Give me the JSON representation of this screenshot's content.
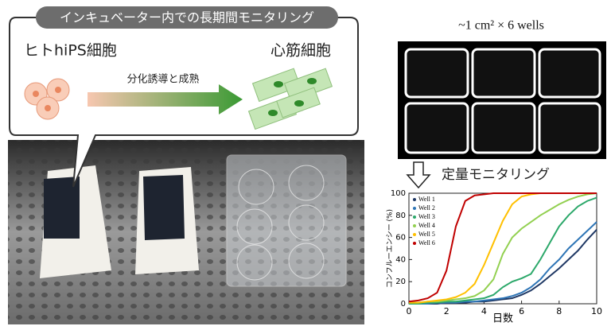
{
  "banner": "インキュベーター内での長期間モニタリング",
  "diagram": {
    "source_label": "ヒトhiPS細胞",
    "target_label": "心筋細胞",
    "arrow_label": "分化誘導と成熟"
  },
  "wells_image": {
    "caption": "~1 cm² × 6 wells"
  },
  "chart_heading": "定量モニタリング",
  "chart_data": {
    "type": "line",
    "xlabel": "日数",
    "ylabel": "コンフルーエンシー (%)",
    "x": [
      0,
      0.5,
      1,
      1.5,
      2,
      2.5,
      3,
      3.5,
      4,
      4.5,
      5,
      5.5,
      6,
      6.5,
      7,
      7.5,
      8,
      8.5,
      9,
      9.5,
      10
    ],
    "xlim": [
      0,
      10
    ],
    "xticks": [
      0,
      2,
      4,
      6,
      8,
      10
    ],
    "ylim": [
      0,
      100
    ],
    "yticks": [
      0,
      20,
      40,
      60,
      80,
      100
    ],
    "legend": "upper left",
    "series": [
      {
        "name": "Well 1",
        "color": "#1f3864",
        "values": [
          0,
          0,
          0,
          0,
          1,
          1,
          1,
          2,
          2,
          3,
          4,
          5,
          8,
          12,
          18,
          25,
          32,
          40,
          48,
          58,
          67
        ]
      },
      {
        "name": "Well 2",
        "color": "#2e75b6",
        "values": [
          0,
          0,
          0,
          1,
          1,
          1,
          2,
          2,
          3,
          4,
          5,
          7,
          10,
          15,
          22,
          32,
          40,
          50,
          58,
          66,
          74
        ]
      },
      {
        "name": "Well 3",
        "color": "#2ca86a",
        "values": [
          0,
          0,
          1,
          1,
          2,
          2,
          3,
          4,
          5,
          8,
          15,
          20,
          23,
          27,
          40,
          55,
          70,
          80,
          88,
          93,
          96
        ]
      },
      {
        "name": "Well 4",
        "color": "#92d050",
        "values": [
          1,
          1,
          2,
          2,
          3,
          4,
          5,
          7,
          12,
          22,
          45,
          60,
          68,
          74,
          80,
          85,
          90,
          94,
          97,
          99,
          100
        ]
      },
      {
        "name": "Well 5",
        "color": "#ffc000",
        "values": [
          1,
          1,
          2,
          3,
          4,
          6,
          10,
          18,
          35,
          55,
          75,
          90,
          97,
          99,
          100,
          100,
          100,
          100,
          100,
          100,
          100
        ]
      },
      {
        "name": "Well 6",
        "color": "#c00000",
        "values": [
          2,
          3,
          5,
          10,
          30,
          70,
          93,
          98,
          99,
          100,
          100,
          100,
          100,
          100,
          100,
          100,
          100,
          100,
          100,
          100,
          100
        ]
      }
    ]
  }
}
